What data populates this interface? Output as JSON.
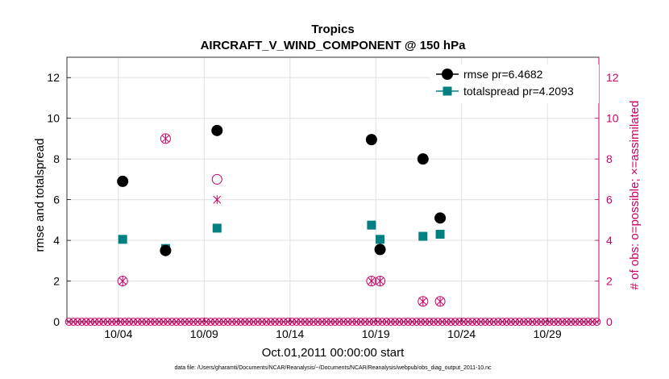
{
  "chart_data": {
    "type": "scatter",
    "title": "Tropics",
    "subtitle": "AIRCRAFT_V_WIND_COMPONENT @ 150 hPa",
    "xlabel": "Oct.01,2011 00:00:00 start",
    "ylabel": "rmse and totalspread",
    "y2label": "# of obs: o=possible; ×=assimilated",
    "xlim": [
      1.0,
      32.0
    ],
    "ylim": [
      0,
      13
    ],
    "y2lim": [
      0,
      13
    ],
    "x_ticks": [
      4,
      9,
      14,
      19,
      24,
      29
    ],
    "x_tick_labels": [
      "10/04",
      "10/09",
      "10/14",
      "10/19",
      "10/24",
      "10/29"
    ],
    "y_ticks": [
      0,
      2,
      4,
      6,
      8,
      10,
      12
    ],
    "y2_ticks": [
      0,
      2,
      4,
      6,
      8,
      10,
      12
    ],
    "grid": true,
    "legend_position": "top-right",
    "footnote": "data file: /Users/gharamti/Documents/NCAR/Reanalysis/~/Documents/NCAR/Reanalysis/webpub/obs_diag_output_2011-10.nc",
    "colors": {
      "rmse": "#000000",
      "totalspread": "#008080",
      "obs": "#cc0066",
      "grid": "#e0e0e0"
    },
    "series": [
      {
        "name": "rmse pr=6.4682",
        "marker": "circle-filled",
        "line": false,
        "x": [
          4.25,
          6.75,
          9.75,
          18.75,
          19.25,
          21.75,
          22.75
        ],
        "y": [
          6.9,
          3.5,
          9.4,
          8.95,
          3.55,
          8.0,
          5.1
        ]
      },
      {
        "name": "totalspread pr=4.2093",
        "marker": "square-filled",
        "line": false,
        "x": [
          4.25,
          6.75,
          9.75,
          18.75,
          19.25,
          21.75,
          22.75
        ],
        "y": [
          4.05,
          3.6,
          4.6,
          4.75,
          4.05,
          4.2,
          4.3
        ]
      }
    ],
    "obs_possible": {
      "x": [
        4.25,
        6.75,
        9.75,
        18.75,
        19.25,
        21.75,
        22.75
      ],
      "y": [
        2,
        9,
        7,
        2,
        2,
        1,
        1
      ]
    },
    "obs_assimilated": {
      "x": [
        4.25,
        6.75,
        9.75,
        18.75,
        19.25,
        21.75,
        22.75
      ],
      "y": [
        2,
        9,
        6,
        2,
        2,
        1,
        1
      ]
    }
  }
}
